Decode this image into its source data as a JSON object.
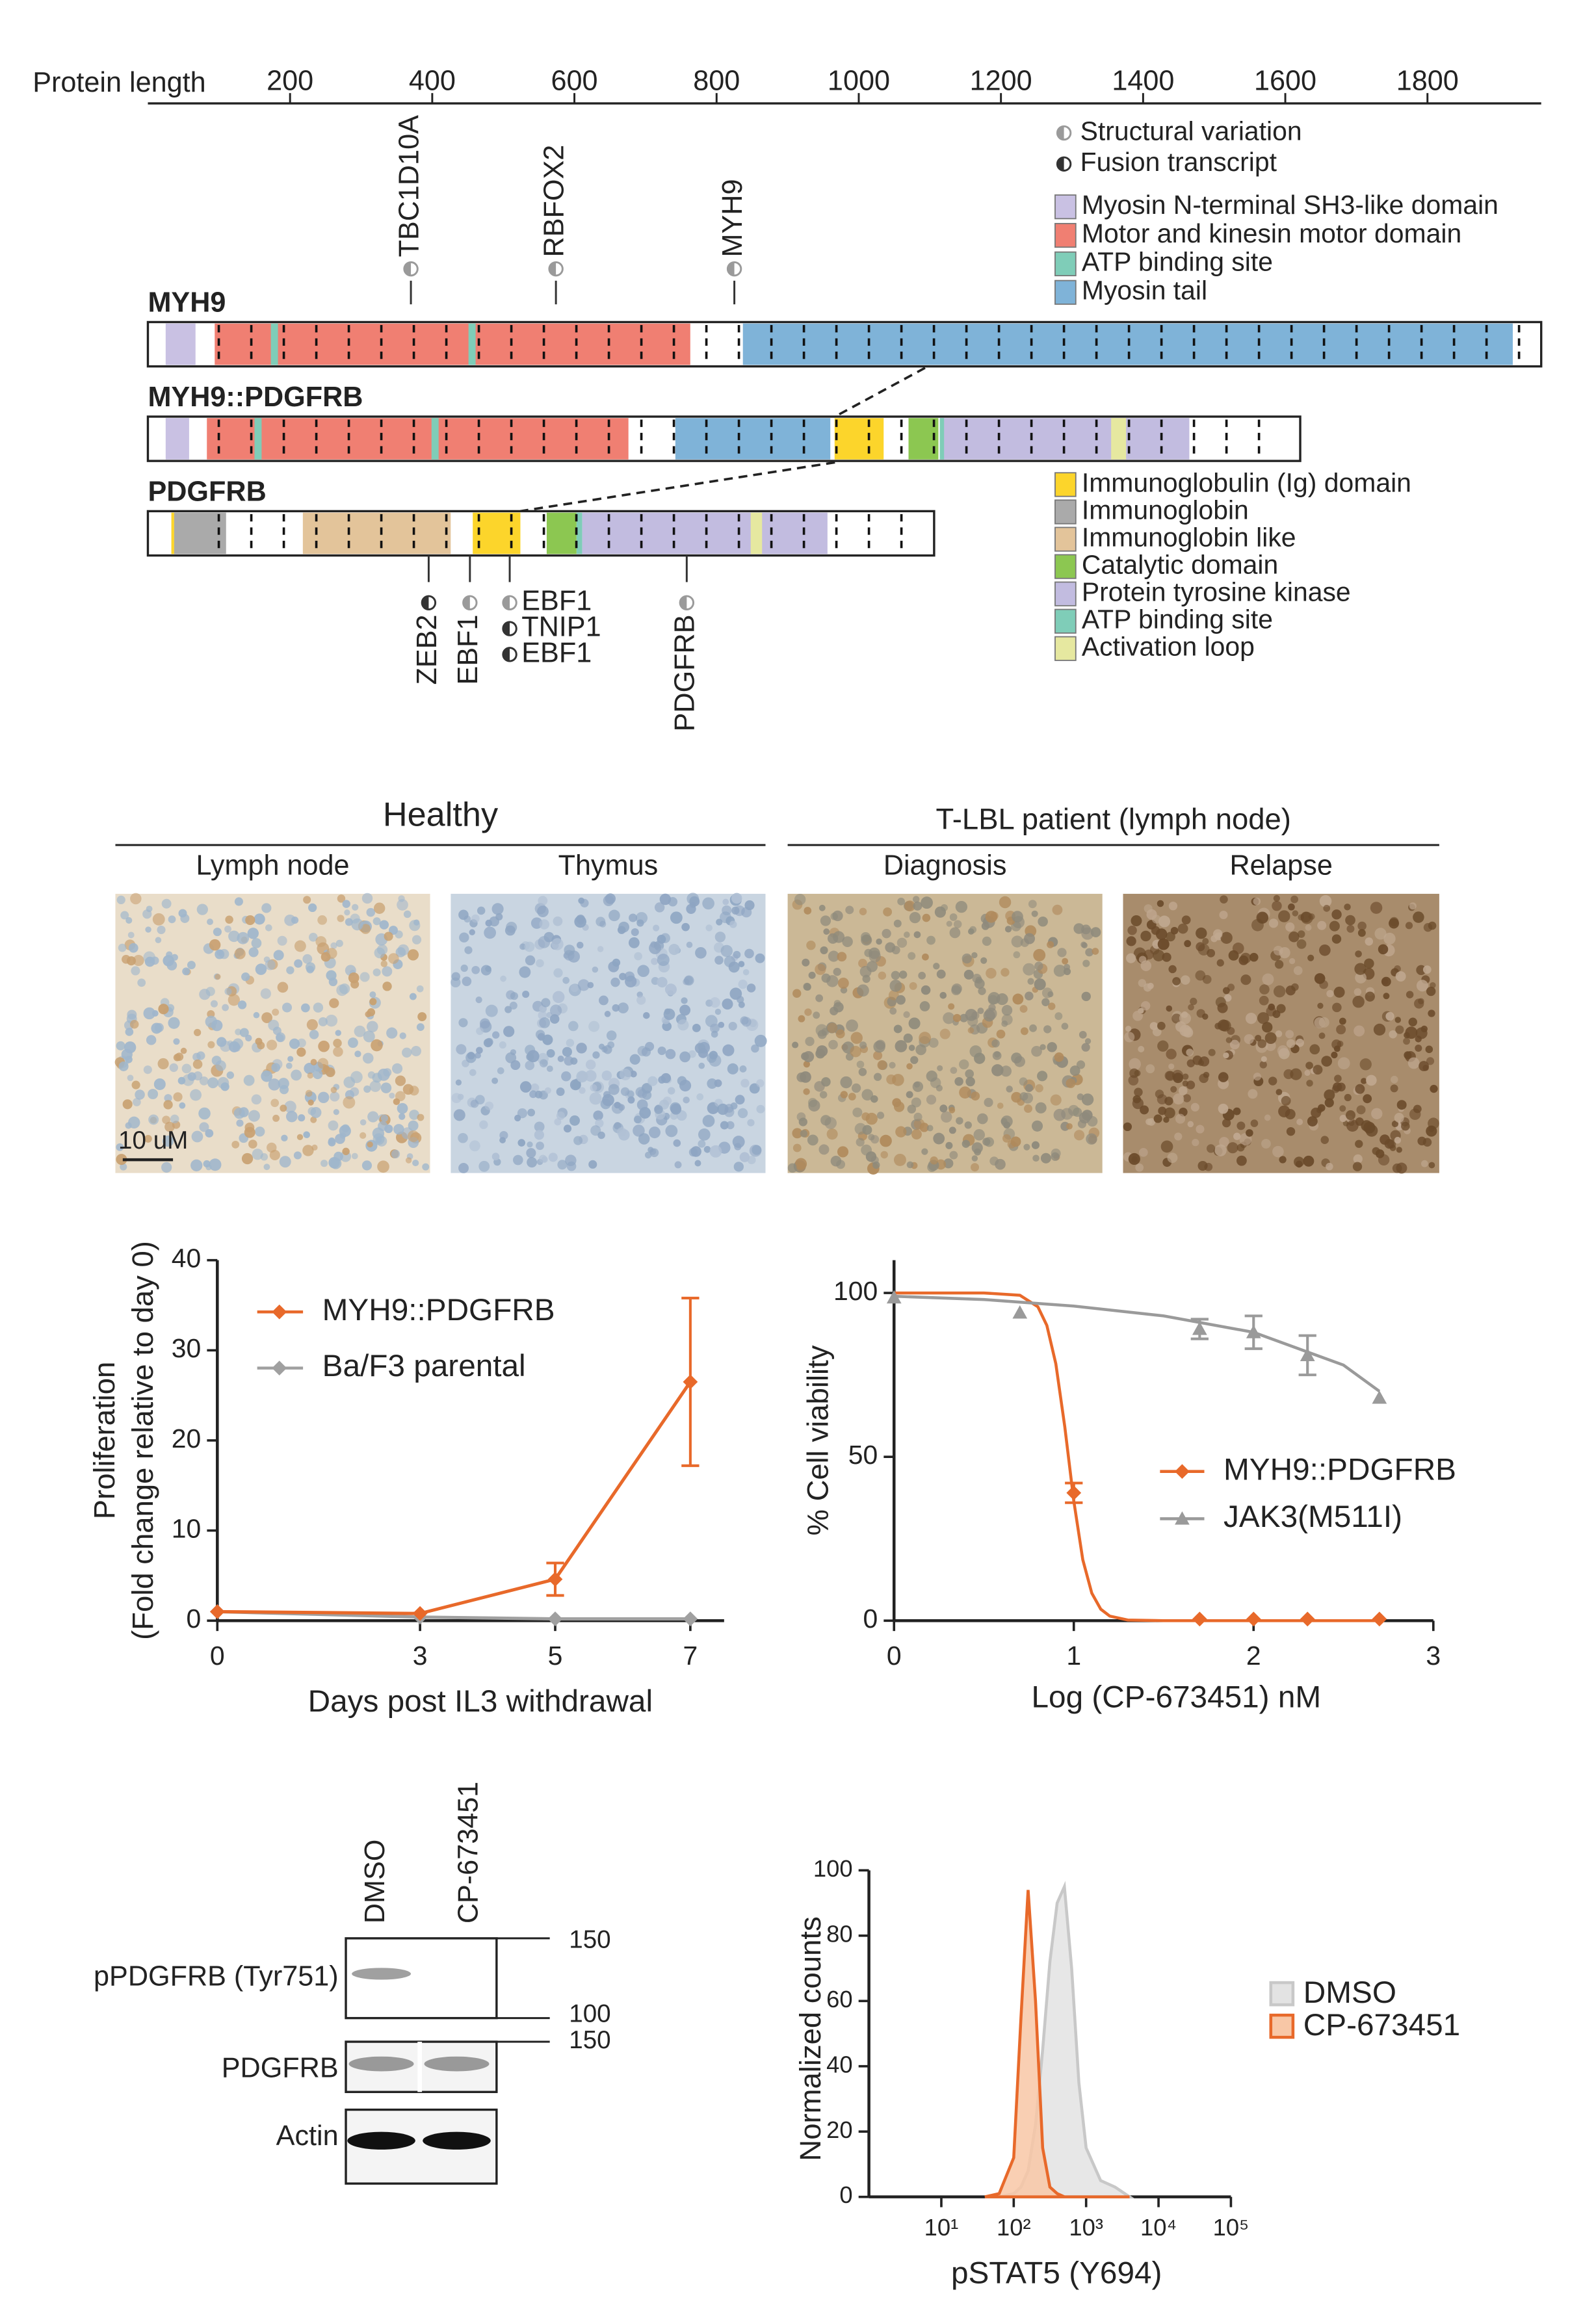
{
  "protein_diagram": {
    "axis_label": "Protein length",
    "xlim": [
      0,
      1960
    ],
    "xticks": [
      200,
      400,
      600,
      800,
      1000,
      1200,
      1400,
      1600,
      1800
    ],
    "variant_legend": [
      {
        "label": "Structural variation",
        "color": "#9a9a9a"
      },
      {
        "label": "Fusion transcript",
        "color": "#333333"
      }
    ],
    "domain_legend": [
      {
        "label": "Myosin N-terminal SH3-like domain",
        "color": "#c9c1e3"
      },
      {
        "label": "Motor and  kinesin motor domain",
        "color": "#f07f72"
      },
      {
        "label": "ATP binding site",
        "color": "#7fcdb8"
      },
      {
        "label": "Myosin tail",
        "color": "#7fb3d8"
      },
      {
        "label": "Immunoglobulin (Ig) domain",
        "color": "#fcd52b"
      },
      {
        "label": "Immunoglobin",
        "color": "#aaaaaa"
      },
      {
        "label": "Immunoglobin like",
        "color": "#e3c49a"
      },
      {
        "label": "Catalytic domain",
        "color": "#8cc751"
      },
      {
        "label": "Protein tyrosine kinase",
        "color": "#c2bce0"
      },
      {
        "label": "ATP binding site",
        "color": "#7fcdb8"
      },
      {
        "label": "Activation loop",
        "color": "#e6e8a0"
      }
    ],
    "proteins": [
      {
        "name": "MYH9",
        "length": 1960,
        "domains": [
          {
            "type": 0,
            "start": 25,
            "end": 67
          },
          {
            "type": 1,
            "start": 94,
            "end": 763
          },
          {
            "type": 2,
            "start": 173,
            "end": 183
          },
          {
            "type": 2,
            "start": 451,
            "end": 461
          },
          {
            "type": 3,
            "start": 837,
            "end": 1920
          }
        ],
        "breakpoints": [
          {
            "position": 370,
            "labels": [
              {
                "text": "TBC1D10A",
                "color": "#9a9a9a"
              }
            ]
          },
          {
            "position": 574,
            "labels": [
              {
                "text": "RBFOX2",
                "color": "#9a9a9a"
              }
            ]
          },
          {
            "position": 825,
            "labels": [
              {
                "text": "MYH9",
                "color": "#9a9a9a"
              }
            ]
          }
        ]
      },
      {
        "name": "MYH9::PDGFRB",
        "length": 1621,
        "domains": [
          {
            "type": 0,
            "start": 25,
            "end": 58
          },
          {
            "type": 1,
            "start": 83,
            "end": 676
          },
          {
            "type": 2,
            "start": 150,
            "end": 160
          },
          {
            "type": 2,
            "start": 399,
            "end": 409
          },
          {
            "type": 3,
            "start": 742,
            "end": 960
          },
          {
            "type": 4,
            "start": 966,
            "end": 1035
          },
          {
            "type": 7,
            "start": 1070,
            "end": 1112
          },
          {
            "type": 8,
            "start": 1114,
            "end": 1465
          },
          {
            "type": 9,
            "start": 1114,
            "end": 1120
          },
          {
            "type": 10,
            "start": 1355,
            "end": 1376
          }
        ],
        "breakpoints": []
      },
      {
        "name": "PDGFRB",
        "length": 1106,
        "domains": [
          {
            "type": 4,
            "start": 33,
            "end": 37
          },
          {
            "type": 5,
            "start": 37,
            "end": 110
          },
          {
            "type": 6,
            "start": 218,
            "end": 426
          },
          {
            "type": 4,
            "start": 457,
            "end": 524
          },
          {
            "type": 7,
            "start": 561,
            "end": 603
          },
          {
            "type": 9,
            "start": 603,
            "end": 611
          },
          {
            "type": 8,
            "start": 611,
            "end": 956
          },
          {
            "type": 10,
            "start": 848,
            "end": 864
          }
        ],
        "breakpoints": [
          {
            "position": 395,
            "labels": [
              {
                "text": "ZEB2",
                "color": "#333333"
              }
            ]
          },
          {
            "position": 453,
            "labels": [
              {
                "text": "EBF1",
                "color": "#9a9a9a"
              }
            ]
          },
          {
            "position": 509,
            "labels": [
              {
                "text": "EBF1",
                "color": "#9a9a9a"
              },
              {
                "text": "TNIP1",
                "color": "#333333"
              },
              {
                "text": "EBF1",
                "color": "#333333"
              }
            ]
          },
          {
            "position": 758,
            "labels": [
              {
                "text": "PDGFRB",
                "color": "#9a9a9a"
              }
            ]
          }
        ]
      }
    ]
  },
  "ihc": {
    "groups": [
      {
        "title": "Healthy",
        "panels": [
          "Lymph node",
          "Thymus"
        ]
      },
      {
        "title": "T-LBL patient (lymph node)",
        "panels": [
          "Diagnosis",
          "Relapse"
        ]
      }
    ],
    "scale_bar": "10 uM"
  },
  "chart_data": [
    {
      "type": "line",
      "x": [
        0,
        3,
        5,
        7
      ],
      "xlim": [
        0,
        7.5
      ],
      "xticks": [
        0,
        3,
        5,
        7
      ],
      "ylim": [
        0,
        40
      ],
      "yticks": [
        0,
        10,
        20,
        30,
        40
      ],
      "ylabel": [
        "Proliferation",
        "(Fold change relative to day 0)"
      ],
      "xlabel": "Days post IL3 withdrawal",
      "legend": "upper left",
      "series": [
        {
          "name": "MYH9::PDGFRB",
          "color": "#e8692a",
          "values": [
            1,
            0.8,
            4.6,
            26.5
          ],
          "errors": [
            0,
            0,
            1.8,
            9.3
          ]
        },
        {
          "name": "Ba/F3 parental",
          "color": "#a0a0a0",
          "values": [
            1,
            0.4,
            0.2,
            0.2
          ],
          "errors": [
            0,
            0,
            0,
            0
          ]
        }
      ]
    },
    {
      "type": "scatter",
      "xlim": [
        0,
        3
      ],
      "xticks": [
        0,
        1,
        2,
        3
      ],
      "ylim": [
        0,
        110
      ],
      "yticks": [
        0,
        50,
        100
      ],
      "ylabel": "% Cell viability",
      "xlabel": "Log (CP-673451) nM",
      "legend": "lower right",
      "series": [
        {
          "name": "MYH9::PDGFRB",
          "color": "#e8692a",
          "marker": "diamond",
          "x": [
            1,
            1.7,
            2,
            2.3,
            2.7
          ],
          "values": [
            39,
            0.5,
            0.5,
            0.5,
            0.5
          ],
          "errors": [
            3,
            0,
            0,
            0,
            0
          ],
          "fit_x": [
            0,
            0.5,
            0.7,
            0.8,
            0.85,
            0.9,
            0.95,
            1,
            1.05,
            1.1,
            1.15,
            1.2,
            1.3,
            1.5,
            2.7
          ],
          "fit_values": [
            100,
            100,
            99.3,
            95.8,
            90.1,
            78.4,
            59.1,
            36.5,
            18.6,
            8.4,
            3.5,
            1.4,
            0.2,
            0,
            0
          ]
        },
        {
          "name": "JAK3(M511I)",
          "color": "#9a9a9a",
          "marker": "triangle",
          "x": [
            0,
            0.7,
            1.7,
            2,
            2.3,
            2.7
          ],
          "values": [
            98.6,
            94,
            89,
            88,
            81,
            68
          ],
          "errors": [
            0,
            0,
            3,
            5,
            6,
            0
          ],
          "fit_x": [
            0,
            0.5,
            1,
            1.5,
            2,
            2.5,
            2.7
          ],
          "fit_values": [
            99,
            98,
            96,
            93,
            88,
            78,
            70
          ]
        }
      ]
    },
    {
      "type": "area",
      "xscale": "log",
      "xlim": [
        1,
        100000
      ],
      "xticks": [
        {
          "value": 10,
          "label": "10¹"
        },
        {
          "value": 100,
          "label": "10²"
        },
        {
          "value": 1000,
          "label": "10³"
        },
        {
          "value": 10000,
          "label": "10⁴"
        },
        {
          "value": 100000,
          "label": "10⁵"
        }
      ],
      "ylim": [
        0,
        100
      ],
      "yticks": [
        0,
        20,
        40,
        60,
        80,
        100
      ],
      "ylabel": "Normalized  counts",
      "xlabel": "pSTAT5 (Y694)",
      "legend": "right",
      "x": [
        40,
        63,
        100,
        126,
        158,
        200,
        251,
        316,
        398,
        501,
        631,
        794,
        1000,
        1585,
        2512,
        3981
      ],
      "series": [
        {
          "name": "DMSO",
          "color": "#c8c8c8",
          "fill": "#e3e3e3",
          "values": [
            0,
            0,
            1,
            3,
            8,
            22,
            45,
            72,
            90,
            95,
            70,
            35,
            15,
            5,
            3,
            0
          ]
        },
        {
          "name": "CP-673451",
          "color": "#e8692a",
          "fill": "#f8c7a6",
          "values": [
            0,
            1,
            12,
            55,
            94,
            60,
            15,
            3,
            1,
            0,
            0,
            0,
            0,
            0,
            0,
            0
          ]
        }
      ]
    }
  ],
  "western_blot": {
    "lanes": [
      "DMSO",
      "CP-673451"
    ],
    "rows": [
      "pPDGFRB (Tyr751)",
      "PDGFRB",
      "Actin"
    ],
    "markers": [
      150,
      100,
      150
    ]
  }
}
